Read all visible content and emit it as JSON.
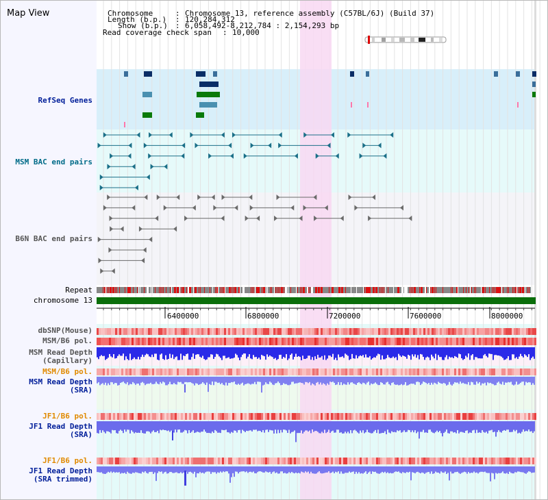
{
  "title": "Map View",
  "header": {
    "chromosome_label": "Chromosome",
    "chromosome_value": "Chromosome 13, reference assembly (C57BL/6J) (Build 37)",
    "length_label": "Length (b.p.)",
    "length_value": "120,284,312",
    "show_label": "Show (b.p.)",
    "show_value": "6,058,492-8,212,784 : 2,154,293 bp",
    "coverage_label": "Read coverage check span",
    "coverage_value": "10,000"
  },
  "tracks": {
    "refseq": "RefSeq Genes",
    "msm_bac": "MSM BAC end pairs",
    "b6n_bac": "B6N BAC end pairs",
    "repeat": "Repeat",
    "chromosome": "chromosome 13",
    "dbsnp": "dbSNP(Mouse)",
    "msm_b6_pol": "MSM/B6 pol.",
    "msm_depth_cap_1": "MSM Read Depth",
    "msm_depth_cap_2": "(Capillary)",
    "msm_b6_pol2": "MSM/B6 pol.",
    "msm_depth_sra_1": "MSM Read Depth",
    "msm_depth_sra_2": "(SRA)",
    "jf1_b6_pol": "JF1/B6 pol.",
    "jf1_depth_sra_1": "JF1 Read Depth",
    "jf1_depth_sra_2": "(SRA)",
    "jf1_b6_pol2": "JF1/B6 pol.",
    "jf1_depth_trim_1": "JF1 Read Depth",
    "jf1_depth_trim_2": "(SRA trimmed)"
  },
  "axis": {
    "ticks": [
      "6400000",
      "6800000",
      "7200000",
      "7600000",
      "8000000"
    ]
  },
  "colors": {
    "refseq_bg": "#d8effa",
    "msm_bac_bg": "#e6fafa",
    "b6n_bac_bg": "#f4f4f8",
    "highlight": "#f8d8f2",
    "chromosome": "#0a6e0a",
    "repeat_red": "#dd1111",
    "depth_blue": "#2020e0",
    "depth_light": "#7070f0"
  }
}
